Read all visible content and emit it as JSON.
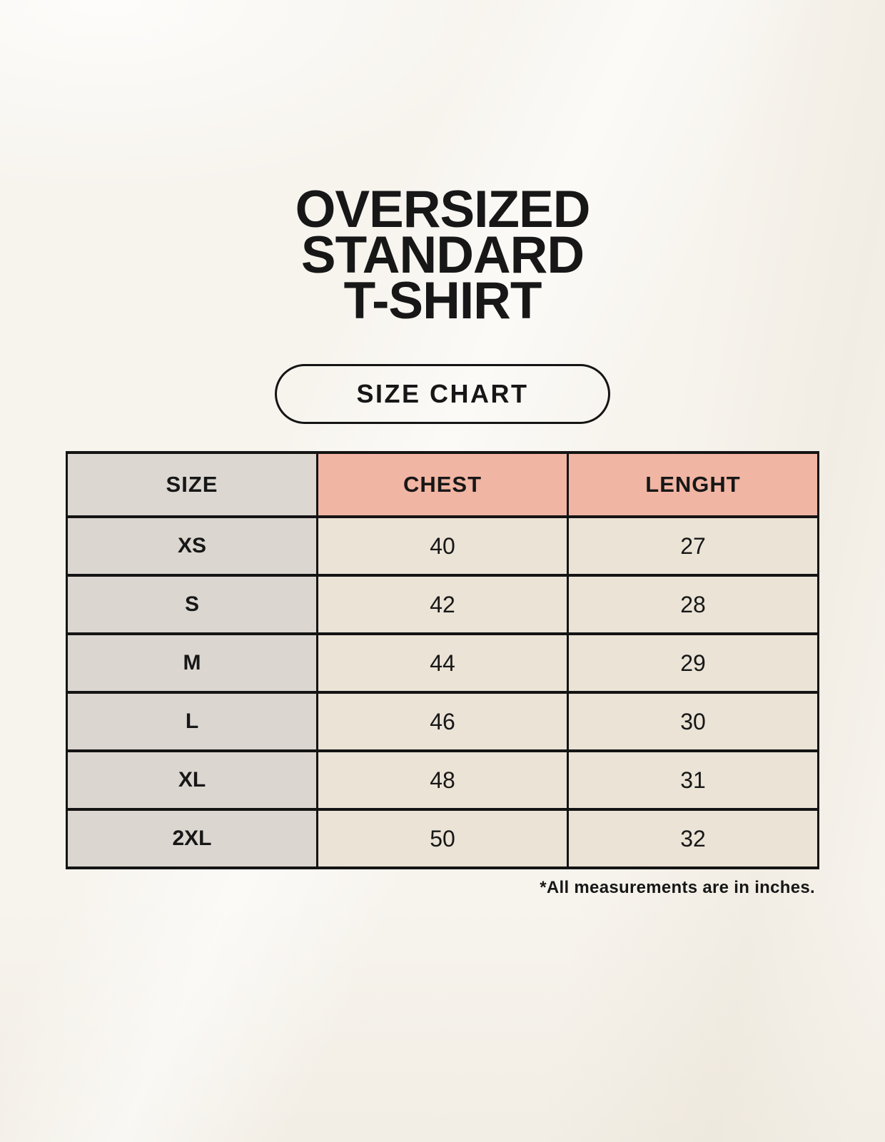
{
  "title": {
    "lines": [
      "OVERSIZED",
      "STANDARD",
      "T-SHIRT"
    ]
  },
  "button": {
    "label": "SIZE CHART"
  },
  "footnote": "*All measurements are in inches.",
  "chart_data": {
    "type": "table",
    "title": "OVERSIZED STANDARD T-SHIRT",
    "subtitle": "SIZE CHART",
    "columns": [
      "SIZE",
      "CHEST",
      "LENGHT"
    ],
    "rows": [
      [
        "XS",
        "40",
        "27"
      ],
      [
        "S",
        "42",
        "28"
      ],
      [
        "M",
        "44",
        "29"
      ],
      [
        "L",
        "46",
        "30"
      ],
      [
        "XL",
        "48",
        "31"
      ],
      [
        "2XL",
        "50",
        "32"
      ]
    ],
    "note": "*All measurements are in inches."
  },
  "colors": {
    "background": "#f7f4ee",
    "text": "#171717",
    "table_border": "#141414",
    "header_size_bg": "#dcd7d1",
    "header_measure_bg": "#f1b5a3",
    "row_label_bg": "#dcd6d0",
    "cell_bg": "#eae3d6"
  }
}
